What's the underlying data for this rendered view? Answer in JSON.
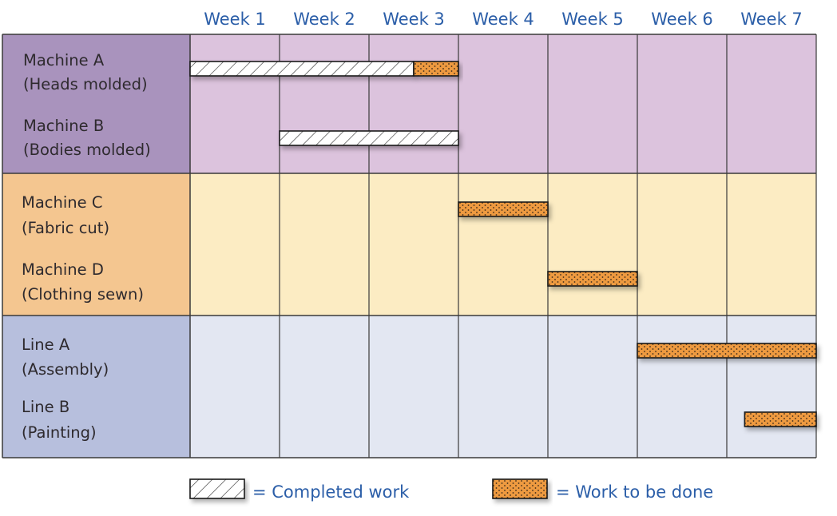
{
  "chart_data": {
    "type": "gantt",
    "columns": [
      "Week 1",
      "Week 2",
      "Week 3",
      "Week 4",
      "Week 5",
      "Week 6",
      "Week 7"
    ],
    "groups": [
      {
        "color_label": "#a993bd",
        "color_bg": "#dcc3dd",
        "rows": [
          {
            "name": "Machine A",
            "detail": "(Heads molded)"
          },
          {
            "name": "Machine B",
            "detail": "(Bodies molded)"
          }
        ]
      },
      {
        "color_label": "#f4c690",
        "color_bg": "#fcecc3",
        "rows": [
          {
            "name": "Machine C",
            "detail": "(Fabric cut)"
          },
          {
            "name": "Machine D",
            "detail": "(Clothing sewn)"
          }
        ]
      },
      {
        "color_label": "#b7bfdd",
        "color_bg": "#e3e7f2",
        "rows": [
          {
            "name": "Line A",
            "detail": "(Assembly)"
          },
          {
            "name": "Line B",
            "detail": "(Painting)"
          }
        ]
      }
    ],
    "tasks": [
      {
        "row": 0,
        "status": "completed",
        "start_week": 0,
        "end_week": 2.5
      },
      {
        "row": 0,
        "status": "todo",
        "start_week": 2.5,
        "end_week": 3
      },
      {
        "row": 1,
        "status": "completed",
        "start_week": 1,
        "end_week": 3
      },
      {
        "row": 2,
        "status": "todo",
        "start_week": 3,
        "end_week": 4
      },
      {
        "row": 3,
        "status": "todo",
        "start_week": 4,
        "end_week": 5
      },
      {
        "row": 4,
        "status": "todo",
        "start_week": 5,
        "end_week": 7
      },
      {
        "row": 5,
        "status": "todo",
        "start_week": 6.2,
        "end_week": 7
      }
    ],
    "legend": {
      "completed": "= Completed work",
      "todo": "= Work to be done"
    },
    "colors": {
      "todo": "#ee9a40",
      "completed": "#ffffff",
      "header_text": "#2b5ea8"
    }
  }
}
